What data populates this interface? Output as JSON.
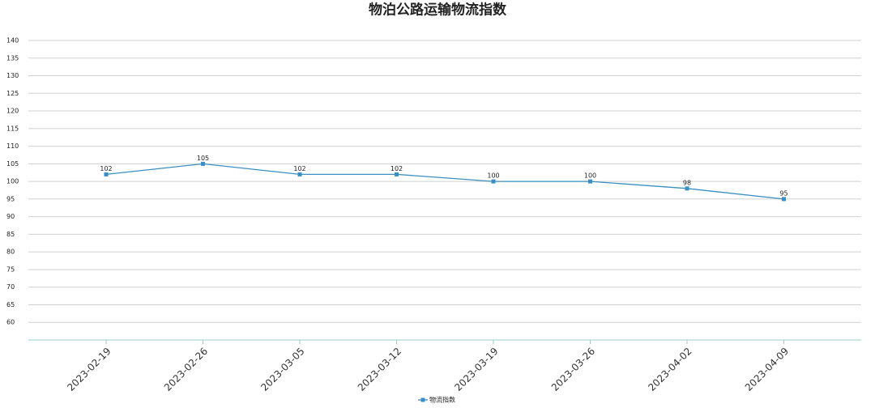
{
  "chart_data": {
    "type": "line",
    "title": "物泊公路运输物流指数",
    "categories": [
      "2023-02-19",
      "2023-02-26",
      "2023-03-05",
      "2023-03-12",
      "2023-03-19",
      "2023-03-26",
      "2023-04-02",
      "2023-04-09"
    ],
    "series": [
      {
        "name": "物流指数",
        "color": "#3a8fc4",
        "values": [
          102,
          105,
          102,
          102,
          100,
          100,
          98,
          95
        ]
      }
    ],
    "ylim": [
      55,
      140
    ],
    "yticks": [
      60,
      65,
      70,
      75,
      80,
      85,
      90,
      95,
      100,
      105,
      110,
      115,
      120,
      125,
      130,
      135,
      140
    ],
    "grid": true,
    "legend": "bottom"
  }
}
